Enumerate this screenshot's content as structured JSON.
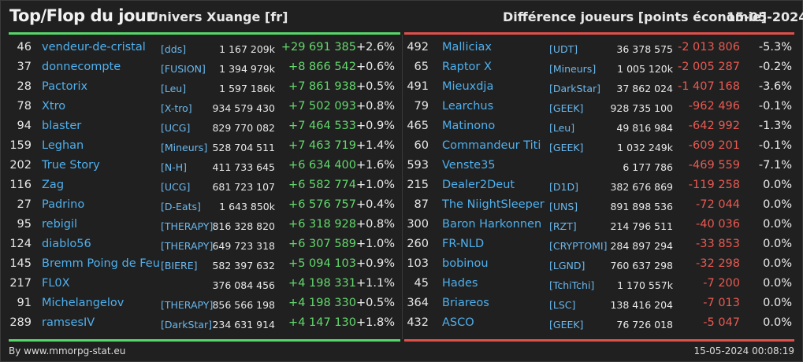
{
  "header": {
    "title": "Top/Flop du jour",
    "universe": "Univers Xuange [fr]",
    "subtitle": "Différence joueurs [points économie]",
    "date": "15-05-2024"
  },
  "colors": {
    "top_bar": "#56d76a",
    "flop_bar": "#e0504a",
    "name": "#4fb0ee",
    "positive": "#63d96d",
    "negative": "#ea5a52"
  },
  "top": [
    {
      "rank": "46",
      "name": "vendeur-de-cristal",
      "guild": "[dds]",
      "points": "1 167 209k",
      "diff": "+29 691 385",
      "pct": "+2.6%"
    },
    {
      "rank": "37",
      "name": "donnecompte",
      "guild": "[FUSION]",
      "points": "1 394 979k",
      "diff": "+8 866 542",
      "pct": "+0.6%"
    },
    {
      "rank": "28",
      "name": "Pactorix",
      "guild": "[Leu]",
      "points": "1 597 186k",
      "diff": "+7 861 938",
      "pct": "+0.5%"
    },
    {
      "rank": "78",
      "name": "Xtro",
      "guild": "[X-tro]",
      "points": "934 579 430",
      "diff": "+7 502 093",
      "pct": "+0.8%"
    },
    {
      "rank": "94",
      "name": "blaster",
      "guild": "[UCG]",
      "points": "829 770 082",
      "diff": "+7 464 533",
      "pct": "+0.9%"
    },
    {
      "rank": "159",
      "name": "Leghan",
      "guild": "[Mineurs]",
      "points": "528 704 511",
      "diff": "+7 463 719",
      "pct": "+1.4%"
    },
    {
      "rank": "202",
      "name": "True Story",
      "guild": "[N-H]",
      "points": "411 733 645",
      "diff": "+6 634 400",
      "pct": "+1.6%"
    },
    {
      "rank": "116",
      "name": "Zag",
      "guild": "[UCG]",
      "points": "681 723 107",
      "diff": "+6 582 774",
      "pct": "+1.0%"
    },
    {
      "rank": "27",
      "name": "Padrino",
      "guild": "[D-Eats]",
      "points": "1 643 850k",
      "diff": "+6 576 757",
      "pct": "+0.4%"
    },
    {
      "rank": "95",
      "name": "rebigil",
      "guild": "[THERAPY]",
      "points": "816 328 820",
      "diff": "+6 318 928",
      "pct": "+0.8%"
    },
    {
      "rank": "124",
      "name": "diablo56",
      "guild": "[THERAPY]",
      "points": "649 723 318",
      "diff": "+6 307 589",
      "pct": "+1.0%"
    },
    {
      "rank": "145",
      "name": "Bremm Poing de Feu",
      "guild": "[BIERE]",
      "points": "582 397 632",
      "diff": "+5 094 103",
      "pct": "+0.9%"
    },
    {
      "rank": "217",
      "name": "FL0X",
      "guild": "",
      "points": "376 084 456",
      "diff": "+4 198 331",
      "pct": "+1.1%"
    },
    {
      "rank": "91",
      "name": "Michelangelov",
      "guild": "[THERAPY]",
      "points": "856 566 198",
      "diff": "+4 198 330",
      "pct": "+0.5%"
    },
    {
      "rank": "289",
      "name": "ramsesIV",
      "guild": "[DarkStar]",
      "points": "234 631 914",
      "diff": "+4 147 130",
      "pct": "+1.8%"
    }
  ],
  "flop": [
    {
      "rank": "492",
      "name": "Malliciax",
      "guild": "[UDT]",
      "points": "36 378 575",
      "diff": "-2 013 806",
      "pct": "-5.3%"
    },
    {
      "rank": "65",
      "name": "Raptor X",
      "guild": "[Mineurs]",
      "points": "1 005 120k",
      "diff": "-2 005 287",
      "pct": "-0.2%"
    },
    {
      "rank": "491",
      "name": "Mieuxdja",
      "guild": "[DarkStar]",
      "points": "37 862 024",
      "diff": "-1 407 168",
      "pct": "-3.6%"
    },
    {
      "rank": "79",
      "name": "Learchus",
      "guild": "[GEEK]",
      "points": "928 735 100",
      "diff": "-962 496",
      "pct": "-0.1%"
    },
    {
      "rank": "465",
      "name": "Matinono",
      "guild": "[Leu]",
      "points": "49 816 984",
      "diff": "-642 992",
      "pct": "-1.3%"
    },
    {
      "rank": "60",
      "name": "Commandeur Titi",
      "guild": "[GEEK]",
      "points": "1 032 249k",
      "diff": "-609 201",
      "pct": "-0.1%"
    },
    {
      "rank": "593",
      "name": "Venste35",
      "guild": "",
      "points": "6 177 786",
      "diff": "-469 559",
      "pct": "-7.1%"
    },
    {
      "rank": "215",
      "name": "Dealer2Deut",
      "guild": "[D1D]",
      "points": "382 676 869",
      "diff": "-119 258",
      "pct": "0.0%"
    },
    {
      "rank": "87",
      "name": "The NiightSleeper",
      "guild": "[UNS]",
      "points": "891 898 536",
      "diff": "-72 044",
      "pct": "0.0%"
    },
    {
      "rank": "300",
      "name": "Baron Harkonnen",
      "guild": "[RZT]",
      "points": "214 796 511",
      "diff": "-40 036",
      "pct": "0.0%"
    },
    {
      "rank": "260",
      "name": "FR-NLD",
      "guild": "[CRYPTOMI]",
      "points": "284 897 294",
      "diff": "-33 853",
      "pct": "0.0%"
    },
    {
      "rank": "103",
      "name": "bobinou",
      "guild": "[LGND]",
      "points": "760 637 298",
      "diff": "-32 298",
      "pct": "0.0%"
    },
    {
      "rank": "45",
      "name": "Hades",
      "guild": "[TchiTchi]",
      "points": "1 170 557k",
      "diff": "-7 200",
      "pct": "0.0%"
    },
    {
      "rank": "364",
      "name": "Briareos",
      "guild": "[LSC]",
      "points": "138 416 204",
      "diff": "-7 013",
      "pct": "0.0%"
    },
    {
      "rank": "432",
      "name": "ASCO",
      "guild": "[GEEK]",
      "points": "76 726 018",
      "diff": "-5 047",
      "pct": "0.0%"
    }
  ],
  "footer": {
    "source": "By www.mmorpg-stat.eu",
    "timestamp": "15-05-2024 00:08:19"
  }
}
